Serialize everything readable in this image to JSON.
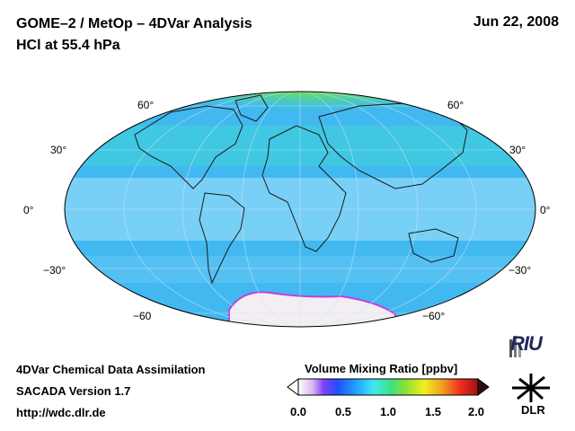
{
  "header": {
    "title_line1": "GOME–2 / MetOp – 4DVar Analysis",
    "title_line2": "HCl at 55.4 hPa",
    "date": "Jun 22, 2008"
  },
  "map": {
    "projection": "Hammer",
    "lat_labels_left": [
      "60°",
      "30°",
      "0°",
      "−30°",
      "−60"
    ],
    "lat_labels_right": [
      "60°",
      "30°",
      "0°",
      "−30°",
      "−60°"
    ],
    "colors": {
      "background": "#42b8f0",
      "tropics_band": "#8cd8f8",
      "north_high": "#7ee03a",
      "north_mid": "#3fd8b8",
      "antarctica": "#f2eef2",
      "antarctic_edge": "#c040e0"
    }
  },
  "footer": {
    "line1": "4DVar Chemical Data Assimilation",
    "line2": "SACADA Version 1.7",
    "line3": "http://wdc.dlr.de"
  },
  "colorbar": {
    "title": "Volume Mixing Ratio [ppbv]",
    "ticks": [
      "0.0",
      "0.5",
      "1.0",
      "1.5",
      "2.0"
    ],
    "colors": [
      "#ffffff",
      "#d8b8f0",
      "#8040ff",
      "#2050ff",
      "#20a0ff",
      "#40e8f0",
      "#40e080",
      "#90e030",
      "#f0f020",
      "#f0a020",
      "#f03020",
      "#a01010"
    ]
  },
  "logos": {
    "riu": "RIU",
    "dlr": "DLR"
  }
}
